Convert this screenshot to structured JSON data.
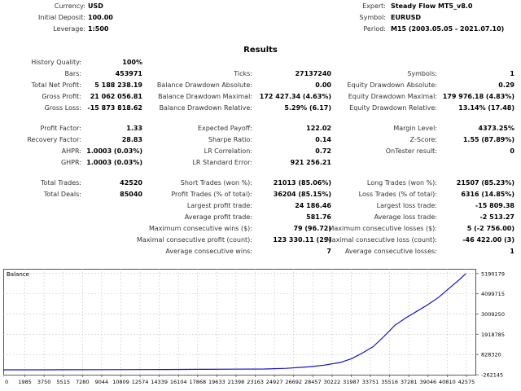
{
  "header": {
    "currency_label": "Currency:",
    "currency": "USD",
    "deposit_label": "Initial Deposit:",
    "deposit": "100.00",
    "leverage_label": "Leverage:",
    "leverage": "1:500",
    "expert_label": "Expert:",
    "expert": "Steady Flow MT5_v8.0",
    "symbol_label": "Symbol:",
    "symbol": "EURUSD",
    "period_label": "Period:",
    "period": "M15 (2003.05.05 - 2021.07.10)"
  },
  "results_title": "Results",
  "stats": {
    "history_quality_label": "History Quality:",
    "history_quality": "100%",
    "bars_label": "Bars:",
    "bars": "453971",
    "ticks_label": "Ticks:",
    "ticks": "27137240",
    "symbols_label": "Symbols:",
    "symbols": "1",
    "net_profit_label": "Total Net Profit:",
    "net_profit": "5 188 238.19",
    "bal_dd_abs_label": "Balance Drawdown Absolute:",
    "bal_dd_abs": "0.00",
    "eq_dd_abs_label": "Equity Drawdown Absolute:",
    "eq_dd_abs": "0.29",
    "gross_profit_label": "Gross Profit:",
    "gross_profit": "21 062 056.81",
    "bal_dd_max_label": "Balance Drawdown Maximal:",
    "bal_dd_max": "172 427.34 (4.63%)",
    "eq_dd_max_label": "Equity Drawdown Maximal:",
    "eq_dd_max": "179 976.18 (4.83%)",
    "gross_loss_label": "Gross Loss:",
    "gross_loss": "-15 873 818.62",
    "bal_dd_rel_label": "Balance Drawdown Relative:",
    "bal_dd_rel": "5.29% (6.17)",
    "eq_dd_rel_label": "Equity Drawdown Relative:",
    "eq_dd_rel": "13.14% (17.48)",
    "profit_factor_label": "Profit Factor:",
    "profit_factor": "1.33",
    "expected_payoff_label": "Expected Payoff:",
    "expected_payoff": "122.02",
    "margin_level_label": "Margin Level:",
    "margin_level": "4373.25%",
    "recovery_factor_label": "Recovery Factor:",
    "recovery_factor": "28.83",
    "sharpe_label": "Sharpe Ratio:",
    "sharpe": "0.14",
    "zscore_label": "Z-Score:",
    "zscore": "1.55 (87.89%)",
    "ahpr_label": "AHPR:",
    "ahpr": "1.0003 (0.03%)",
    "lr_corr_label": "LR Correlation:",
    "lr_corr": "0.72",
    "ontester_label": "OnTester result:",
    "ontester": "0",
    "ghpr_label": "GHPR:",
    "ghpr": "1.0003 (0.03%)",
    "lr_err_label": "LR Standard Error:",
    "lr_err": "921 256.21",
    "total_trades_label": "Total Trades:",
    "total_trades": "42520",
    "short_trades_label": "Short Trades (won %):",
    "short_trades": "21013 (85.06%)",
    "long_trades_label": "Long Trades (won %):",
    "long_trades": "21507 (85.23%)",
    "total_deals_label": "Total Deals:",
    "total_deals": "85040",
    "profit_trades_label": "Profit Trades (% of total):",
    "profit_trades": "36204 (85.15%)",
    "loss_trades_label": "Loss Trades (% of total):",
    "loss_trades": "6316 (14.85%)",
    "largest_profit_label": "Largest profit trade:",
    "largest_profit": "24 186.46",
    "largest_loss_label": "Largest loss trade:",
    "largest_loss": "-15 809.38",
    "avg_profit_label": "Average profit trade:",
    "avg_profit": "581.76",
    "avg_loss_label": "Average loss trade:",
    "avg_loss": "-2 513.27",
    "max_cons_wins_label": "Maximum consecutive wins ($):",
    "max_cons_wins": "79 (96.72)",
    "max_cons_losses_label": "Maximum consecutive losses ($):",
    "max_cons_losses": "5 (-2 756.00)",
    "maximal_cons_profit_label": "Maximal consecutive profit (count):",
    "maximal_cons_profit": "123 330.11 (29)",
    "maximal_cons_loss_label": "Maximal consecutive loss (count):",
    "maximal_cons_loss": "-46 422.00 (3)",
    "avg_cons_wins_label": "Average consecutive wins:",
    "avg_cons_wins": "7",
    "avg_cons_losses_label": "Average consecutive losses:",
    "avg_cons_losses": "1"
  },
  "chart_data": {
    "type": "line",
    "title": "Balance",
    "x_ticks": [
      0,
      1985,
      3750,
      5515,
      7280,
      9044,
      10809,
      12574,
      14339,
      16104,
      17868,
      19633,
      21398,
      23163,
      24927,
      26692,
      28457,
      30222,
      31987,
      33751,
      35516,
      37281,
      39046,
      40810,
      42575
    ],
    "y_ticks": [
      5190179,
      4099715,
      3009250,
      1918785,
      828320,
      -262145
    ],
    "xlim": [
      0,
      43400
    ],
    "ylim": [
      -262145,
      5444000
    ],
    "grid": true,
    "line_color": "#1010c8",
    "series": [
      {
        "x": [
          0,
          3000,
          6000,
          9000,
          12000,
          15000,
          18000,
          21000,
          24000,
          26000,
          28000,
          29500,
          31000,
          32000,
          33000,
          34000,
          35000,
          36000,
          37000,
          38000,
          39000,
          40000,
          41000,
          42000,
          42520
        ],
        "y": [
          100,
          2000,
          5000,
          10000,
          15000,
          20000,
          27000,
          35000,
          45000,
          80000,
          160000,
          250000,
          400000,
          600000,
          900000,
          1250000,
          1800000,
          2400000,
          2800000,
          3150000,
          3500000,
          3900000,
          4400000,
          4900000,
          5188338
        ]
      }
    ]
  }
}
